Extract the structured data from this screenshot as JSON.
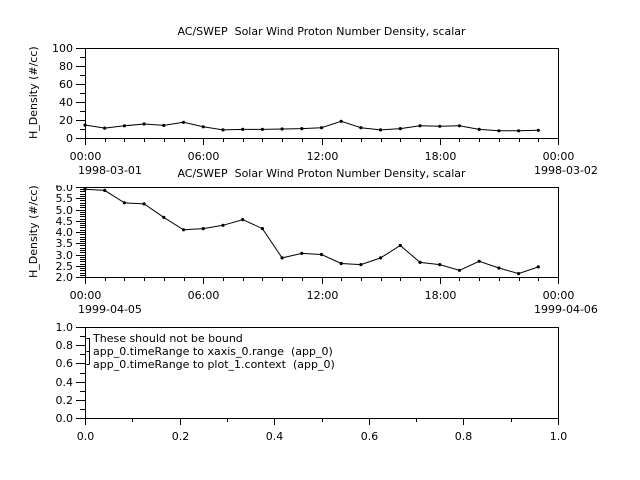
{
  "colors": {
    "background": "#ffffff",
    "foreground": "#000000",
    "line": "#000000"
  },
  "chart_data": [
    {
      "type": "line",
      "title": "AC/SWEP  Solar Wind Proton Number Density, scalar",
      "ylabel": "H_Density (#/cc)",
      "xlim": [
        0,
        24
      ],
      "ylim": [
        0,
        100
      ],
      "xtick_labels": [
        "00:00",
        "06:00",
        "12:00",
        "18:00",
        "00:00"
      ],
      "ytick_labels": [
        "0",
        "20",
        "40",
        "60",
        "80",
        "100"
      ],
      "x_minor_step": 1,
      "y_minor_step": 10,
      "date_start": "1998-03-01",
      "date_end": "1998-03-02",
      "grid": false,
      "legend": null,
      "series": [
        {
          "name": "H_Density",
          "x": [
            0,
            1,
            2,
            3,
            4,
            5,
            6,
            7,
            8,
            9,
            10,
            11,
            12,
            13,
            14,
            15,
            16,
            17,
            18,
            19,
            20,
            21,
            22,
            23
          ],
          "values": [
            14.5,
            11,
            13.5,
            15.5,
            14,
            17.5,
            12.5,
            9,
            9.5,
            9.5,
            10,
            10.5,
            11.5,
            18.5,
            11.5,
            9,
            10.5,
            13.5,
            13,
            13.5,
            9.5,
            8,
            8,
            8.5
          ]
        }
      ]
    },
    {
      "type": "line",
      "title": "AC/SWEP  Solar Wind Proton Number Density, scalar",
      "ylabel": "H_Density (#/cc)",
      "xlim": [
        0,
        24
      ],
      "ylim": [
        2.0,
        6.0
      ],
      "xtick_labels": [
        "00:00",
        "06:00",
        "12:00",
        "18:00",
        "00:00"
      ],
      "ytick_labels": [
        "2.0",
        "2.5",
        "3.0",
        "3.5",
        "4.0",
        "4.5",
        "5.0",
        "5.5",
        "6.0"
      ],
      "x_minor_step": 1,
      "y_minor_step": 0.1,
      "date_start": "1999-04-05",
      "date_end": "1999-04-06",
      "grid": false,
      "legend": null,
      "series": [
        {
          "name": "H_Density",
          "x": [
            0,
            1,
            2,
            3,
            4,
            5,
            6,
            7,
            8,
            9,
            10,
            11,
            12,
            13,
            14,
            15,
            16,
            17,
            18,
            19,
            20,
            21,
            22,
            23
          ],
          "values": [
            5.9,
            5.85,
            5.3,
            5.25,
            4.65,
            4.1,
            4.15,
            4.3,
            4.55,
            4.15,
            2.85,
            3.05,
            3.0,
            2.6,
            2.55,
            2.85,
            3.4,
            2.65,
            2.55,
            2.3,
            2.7,
            2.4,
            2.15,
            2.45
          ]
        }
      ]
    },
    {
      "type": "empty",
      "xlim": [
        0,
        1
      ],
      "ylim": [
        0,
        1
      ],
      "xtick_labels": [
        "0.0",
        "0.2",
        "0.4",
        "0.6",
        "0.8",
        "1.0"
      ],
      "ytick_labels": [
        "0.0",
        "0.2",
        "0.4",
        "0.6",
        "0.8",
        "1.0"
      ],
      "x_minor_step": 0.1,
      "y_minor_step": 0.1,
      "grid": false,
      "legend": null,
      "annotation_lines": [
        "These should not be bound",
        "app_0.timeRange to xaxis_0.range  (app_0)",
        "app_0.timeRange to plot_1.context  (app_0)"
      ]
    }
  ]
}
